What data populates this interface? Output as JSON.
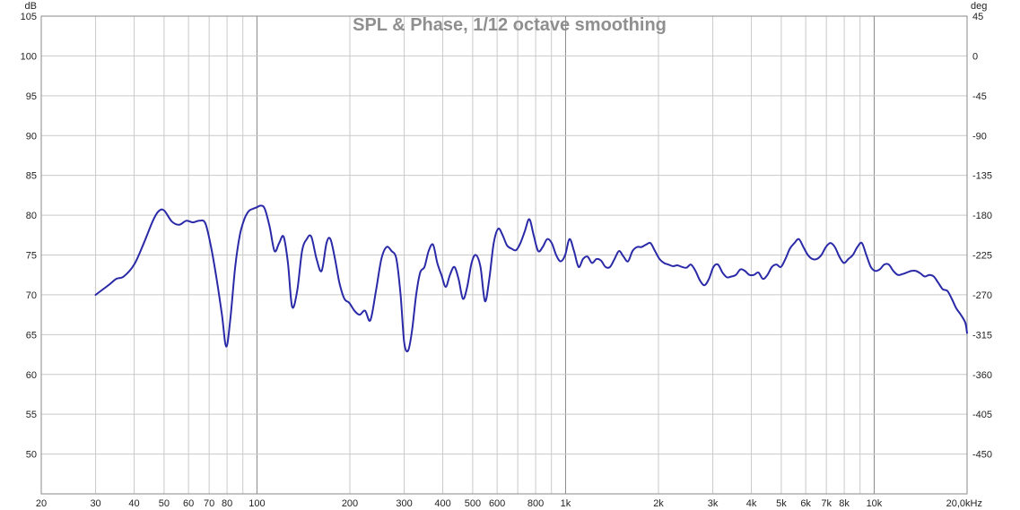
{
  "chart_data": {
    "type": "line",
    "title": "SPL & Phase, 1/12 octave smoothing",
    "xscale": "log",
    "xlim": [
      20,
      20000
    ],
    "ylim": [
      45,
      105
    ],
    "y2lim": [
      -495,
      45
    ],
    "y_unit": "dB",
    "y2_unit": "deg",
    "x_ticks": [
      {
        "v": 20,
        "label": "20"
      },
      {
        "v": 30,
        "label": "30"
      },
      {
        "v": 40,
        "label": "40"
      },
      {
        "v": 50,
        "label": "50"
      },
      {
        "v": 60,
        "label": "60"
      },
      {
        "v": 70,
        "label": "70"
      },
      {
        "v": 80,
        "label": "80"
      },
      {
        "v": 100,
        "label": "100"
      },
      {
        "v": 200,
        "label": "200"
      },
      {
        "v": 300,
        "label": "300"
      },
      {
        "v": 400,
        "label": "400"
      },
      {
        "v": 500,
        "label": "500"
      },
      {
        "v": 600,
        "label": "600"
      },
      {
        "v": 800,
        "label": "800"
      },
      {
        "v": 1000,
        "label": "1k"
      },
      {
        "v": 2000,
        "label": "2k"
      },
      {
        "v": 3000,
        "label": "3k"
      },
      {
        "v": 4000,
        "label": "4k"
      },
      {
        "v": 5000,
        "label": "5k"
      },
      {
        "v": 6000,
        "label": "6k"
      },
      {
        "v": 7000,
        "label": "7k"
      },
      {
        "v": 8000,
        "label": "8k"
      },
      {
        "v": 10000,
        "label": "10k"
      },
      {
        "v": 20000,
        "label": "20,0kHz"
      }
    ],
    "minor_x_ticks": [
      90,
      700,
      900,
      9000
    ],
    "major_x_ticks": [
      100,
      1000,
      10000
    ],
    "y_ticks": [
      {
        "v": 105,
        "label": "105"
      },
      {
        "v": 100,
        "label": "100"
      },
      {
        "v": 95,
        "label": "95"
      },
      {
        "v": 90,
        "label": "90"
      },
      {
        "v": 85,
        "label": "85"
      },
      {
        "v": 80,
        "label": "80"
      },
      {
        "v": 75,
        "label": "75"
      },
      {
        "v": 70,
        "label": "70"
      },
      {
        "v": 65,
        "label": "65"
      },
      {
        "v": 60,
        "label": "60"
      },
      {
        "v": 55,
        "label": "55"
      },
      {
        "v": 50,
        "label": "50"
      }
    ],
    "y2_ticks": [
      {
        "v": 45,
        "label": "45"
      },
      {
        "v": 0,
        "label": "0"
      },
      {
        "v": -45,
        "label": "-45"
      },
      {
        "v": -90,
        "label": "-90"
      },
      {
        "v": -135,
        "label": "-135"
      },
      {
        "v": -180,
        "label": "-180"
      },
      {
        "v": -225,
        "label": "-225"
      },
      {
        "v": -270,
        "label": "-270"
      },
      {
        "v": -315,
        "label": "-315"
      },
      {
        "v": -360,
        "label": "-360"
      },
      {
        "v": -405,
        "label": "-405"
      },
      {
        "v": -450,
        "label": "-450"
      }
    ],
    "grid": true,
    "colors": {
      "line": "#2a2aa8",
      "grid": "#c9c9c9",
      "grid_major": "#8a8a8a",
      "frame": "#8a8a8a"
    },
    "series": [
      {
        "x": [
          30,
          33,
          35,
          37,
          40,
          43,
          46,
          48,
          50,
          53,
          56,
          59,
          62,
          65,
          68,
          71,
          74,
          77,
          79.5,
          82,
          85,
          88,
          91,
          94,
          97,
          100,
          103,
          106,
          110,
          114,
          118,
          122,
          126,
          130,
          135,
          140,
          145,
          150,
          156,
          162,
          168,
          173,
          179,
          185,
          192,
          199,
          207,
          215,
          224,
          233,
          243,
          253,
          263,
          273,
          283,
          292,
          300,
          309,
          318,
          328,
          338,
          349,
          360,
          372,
          384,
          396,
          409,
          422,
          436,
          450,
          465,
          480,
          496,
          512,
          530,
          548,
          566,
          585,
          605,
          625,
          646,
          668,
          691,
          714,
          738,
          763,
          788,
          815,
          843,
          872,
          902,
          932,
          964,
          997,
          1030,
          1065,
          1102,
          1139,
          1178,
          1218,
          1260,
          1303,
          1347,
          1393,
          1441,
          1490,
          1541,
          1593,
          1648,
          1704,
          1762,
          1822,
          1884,
          1949,
          2015,
          2084,
          2155,
          2229,
          2305,
          2383,
          2465,
          2549,
          2636,
          2726,
          2819,
          2915,
          3015,
          3117,
          3224,
          3334,
          3448,
          3565,
          3687,
          3813,
          3943,
          4077,
          4216,
          4360,
          4509,
          4663,
          4822,
          4986,
          5156,
          5332,
          5514,
          5702,
          5897,
          6098,
          6306,
          6521,
          6744,
          6974,
          7212,
          7458,
          7712,
          7975,
          8247,
          8529,
          8820,
          9121,
          9432,
          9754,
          10087,
          10431,
          10787,
          11155,
          11536,
          11929,
          12336,
          12757,
          13193,
          13643,
          14109,
          14590,
          15088,
          15603,
          16136,
          16687,
          17256,
          17845,
          18454,
          19084,
          19735,
          20000
        ],
        "values": [
          70.0,
          71.2,
          72.0,
          72.3,
          73.8,
          76.5,
          79.3,
          80.5,
          80.6,
          79.2,
          78.8,
          79.3,
          79.1,
          79.3,
          79.0,
          76.0,
          72.0,
          67.5,
          63.5,
          67.0,
          73.5,
          77.5,
          79.5,
          80.5,
          80.8,
          81.0,
          81.2,
          80.8,
          78.5,
          75.5,
          76.5,
          77.3,
          74.0,
          68.5,
          70.5,
          75.5,
          77.0,
          77.3,
          74.5,
          73.0,
          76.5,
          77.0,
          74.5,
          71.5,
          69.5,
          69.0,
          68.0,
          67.5,
          68.0,
          66.8,
          70.5,
          74.5,
          76.0,
          75.5,
          74.5,
          70.0,
          64.0,
          63.0,
          65.5,
          70.0,
          72.8,
          73.5,
          75.5,
          76.3,
          74.0,
          72.5,
          71.0,
          72.5,
          73.5,
          72.0,
          69.5,
          71.0,
          74.0,
          75.0,
          73.5,
          69.2,
          72.0,
          76.5,
          78.3,
          77.5,
          76.2,
          75.8,
          75.6,
          76.5,
          78.0,
          79.5,
          77.5,
          75.5,
          76.0,
          77.0,
          76.5,
          75.0,
          74.2,
          75.0,
          77.0,
          75.5,
          73.5,
          74.5,
          74.8,
          74.0,
          74.5,
          74.3,
          73.5,
          73.5,
          74.5,
          75.5,
          74.8,
          74.2,
          75.5,
          76.0,
          76.0,
          76.3,
          76.5,
          75.5,
          74.5,
          74.0,
          73.8,
          73.6,
          73.7,
          73.5,
          73.4,
          73.8,
          73.0,
          71.8,
          71.2,
          72.0,
          73.5,
          73.8,
          72.8,
          72.2,
          72.3,
          72.5,
          73.2,
          73.0,
          72.5,
          72.5,
          72.8,
          72.0,
          72.5,
          73.5,
          73.8,
          73.5,
          74.5,
          75.8,
          76.5,
          77.0,
          76.0,
          75.0,
          74.5,
          74.5,
          75.0,
          76.0,
          76.5,
          76.0,
          74.8,
          74.0,
          74.5,
          75.0,
          76.0,
          76.5,
          75.0,
          73.5,
          73.0,
          73.2,
          73.8,
          73.8,
          73.0,
          72.5,
          72.6,
          72.8,
          73.0,
          73.0,
          72.7,
          72.3,
          72.5,
          72.3,
          71.5,
          70.7,
          70.5,
          69.5,
          68.3,
          67.5,
          66.5,
          65.2
        ]
      }
    ]
  }
}
